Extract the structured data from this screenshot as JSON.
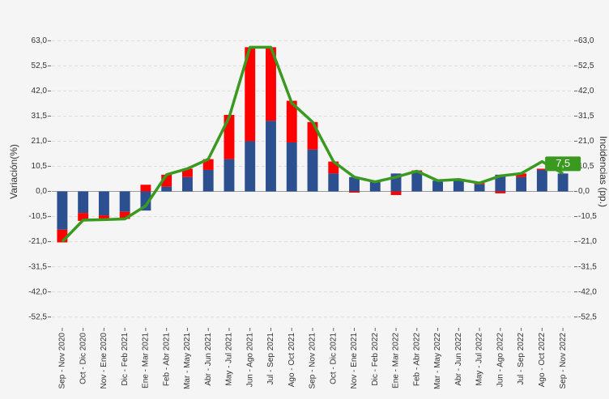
{
  "chart_data": {
    "type": "bar",
    "y_label": "Variación(%)",
    "y2_label": "Incidencias (pp.)",
    "categories": [
      "Sep - Nov 2020",
      "Oct - Dic 2020",
      "Nov - Ene 2020",
      "Dic - Feb 2021",
      "Ene - Mar 2021",
      "Feb - Abr 2021",
      "Mar - May 2021",
      "Abr - Jun 2021",
      "May - Jul 2021",
      "Jun - Ago 2021",
      "Jul - Sep 2021",
      "Ago - Oct 2021",
      "Sep - Nov 2021",
      "Oct - Dic 2021",
      "Nov - Ene 2021",
      "Dic - Feb 2022",
      "Ene - Mar 2022",
      "Feb - Abr 2022",
      "Mar - May 2022",
      "Abr - Jun 2022",
      "May - Jul 2022",
      "Jun - Ago 2022",
      "Jul - Sep 2022",
      "Ago - Oct 2022",
      "Sep - Nov 2022"
    ],
    "series": [
      {
        "type": "bar",
        "color": "#2b4f8f",
        "values": [
          -16,
          -9,
          -10,
          -8.5,
          -8,
          2,
          6,
          9,
          13.5,
          21,
          29.5,
          20.5,
          17.5,
          7.5,
          6,
          4,
          7.5,
          8.5,
          4.5,
          5,
          3,
          7,
          6,
          9,
          7.5
        ]
      },
      {
        "type": "bar",
        "color": "#ff0000",
        "values": [
          -5.3,
          -3.3,
          -1.8,
          -3,
          2.8,
          5,
          3.5,
          4.5,
          18.5,
          39.3,
          30.8,
          17.4,
          11.5,
          5,
          -0.5,
          0.3,
          -1.5,
          0.3,
          0,
          0,
          0.5,
          -0.8,
          1.5,
          0.5,
          0
        ]
      },
      {
        "type": "line",
        "color": "#3a9a1f",
        "values": [
          -21,
          -12,
          -11.8,
          -11.5,
          -6,
          7,
          9.5,
          13.5,
          31,
          60.3,
          60.3,
          37,
          29,
          12.5,
          6,
          4,
          6,
          8.5,
          4.5,
          5,
          3.5,
          6.5,
          7.5,
          12.5,
          7.5
        ],
        "value_labels": [
          null,
          null,
          null,
          null,
          null,
          null,
          null,
          null,
          null,
          null,
          null,
          null,
          null,
          null,
          null,
          null,
          null,
          null,
          null,
          null,
          null,
          null,
          null,
          null,
          "7,5"
        ]
      }
    ],
    "ylim": [
      -57,
      66.5
    ],
    "yticks": [
      {
        "value": 63,
        "label": "63,0"
      },
      {
        "value": 52.5,
        "label": "52,5"
      },
      {
        "value": 42,
        "label": "42,0"
      },
      {
        "value": 31.5,
        "label": "31,5"
      },
      {
        "value": 21,
        "label": "21,0"
      },
      {
        "value": 10.5,
        "label": "10,5"
      },
      {
        "value": 0,
        "label": "0,0"
      },
      {
        "value": -10.5,
        "label": "-10,5"
      },
      {
        "value": -21,
        "label": "-21,0"
      },
      {
        "value": -31.5,
        "label": "-31,5"
      },
      {
        "value": -42,
        "label": "-42,0"
      },
      {
        "value": -52.5,
        "label": "-52,5"
      }
    ],
    "y2lim": [
      -57,
      66.5
    ],
    "y2ticks": [
      {
        "value": 63,
        "label": "63,0"
      },
      {
        "value": 52.5,
        "label": "52,5"
      },
      {
        "value": 42,
        "label": "42,0"
      },
      {
        "value": 31.5,
        "label": "31,5"
      },
      {
        "value": 21,
        "label": "21,0"
      },
      {
        "value": 10.5,
        "label": "10,5"
      },
      {
        "value": 0,
        "label": "0,0"
      },
      {
        "value": -10.5,
        "label": "-10,5"
      },
      {
        "value": -21,
        "label": "-21,0"
      },
      {
        "value": -31.5,
        "label": "-31,5"
      },
      {
        "value": -42,
        "label": "-42,0"
      },
      {
        "value": -52.5,
        "label": "-52,5"
      }
    ],
    "grid": true
  }
}
